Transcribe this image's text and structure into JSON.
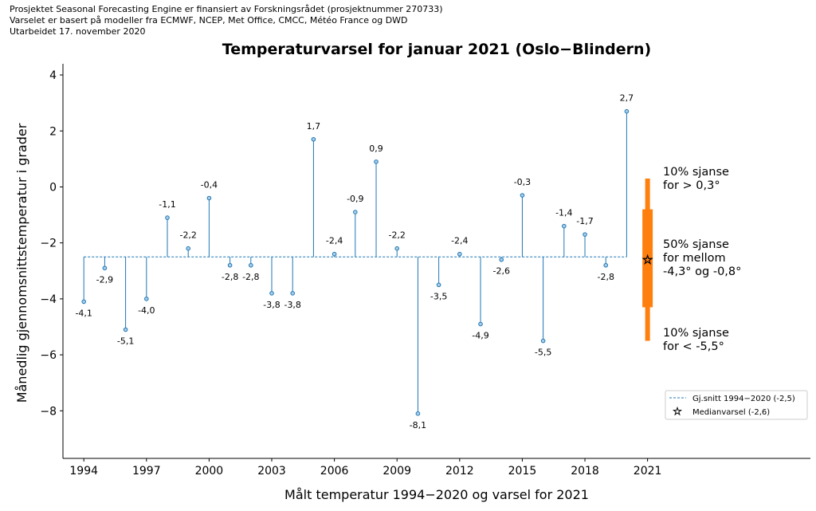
{
  "header": {
    "line1": "Prosjektet Seasonal Forecasting Engine er finansiert av Forskningsrådet (prosjektnummer 270733)",
    "line2": "Varselet er basert på modeller fra ECMWF, NCEP, Met Office, CMCC, Météo France og DWD",
    "line3": "Utarbeidet 17. november 2020"
  },
  "chart_data": {
    "type": "stem",
    "title": "Temperaturvarsel for januar 2021 (Oslo−Blindern)",
    "xlabel": "Målt temperatur 1994−2020 og varsel for 2021",
    "ylabel": "Månedlig gjennomsnittstemperatur i grader",
    "xlim": [
      1993,
      2028.8
    ],
    "ylim": [
      -9.7,
      4.4
    ],
    "xticks": [
      1994,
      1997,
      2000,
      2003,
      2006,
      2009,
      2012,
      2015,
      2018,
      2021
    ],
    "yticks": [
      4,
      2,
      0,
      -2,
      -4,
      -6,
      -8
    ],
    "baseline": -2.5,
    "x": [
      1994,
      1995,
      1996,
      1997,
      1998,
      1999,
      2000,
      2001,
      2002,
      2003,
      2004,
      2005,
      2006,
      2007,
      2008,
      2009,
      2010,
      2011,
      2012,
      2013,
      2014,
      2015,
      2016,
      2017,
      2018,
      2019,
      2020
    ],
    "values": [
      -4.1,
      -2.9,
      -5.1,
      -4.0,
      -1.1,
      -2.2,
      -0.4,
      -2.8,
      -2.8,
      -3.8,
      -3.8,
      1.7,
      -2.4,
      -0.9,
      0.9,
      -2.2,
      -8.1,
      -3.5,
      -2.4,
      -4.9,
      -2.6,
      -0.3,
      -5.5,
      -1.4,
      -1.7,
      -2.8,
      2.7
    ],
    "labels": [
      "-4,1",
      "-2,9",
      "-5,1",
      "-4,0",
      "-1,1",
      "-2,2",
      "-0,4",
      "-2,8",
      "-2,8",
      "-3,8",
      "-3,8",
      "1,7",
      "-2,4",
      "-0,9",
      "0,9",
      "-2,2",
      "-8,1",
      "-3,5",
      "-2,4",
      "-4,9",
      "-2,6",
      "-0,3",
      "-5,5",
      "-1,4",
      "-1,7",
      "-2,8",
      "2,7"
    ],
    "forecast": {
      "year": 2021,
      "p10": -5.5,
      "p25": -4.3,
      "median": -2.6,
      "p75": -0.8,
      "p90": 0.3,
      "upper_text": [
        "10% sjanse",
        "for > 0,3°"
      ],
      "middle_text": [
        "50% sjanse",
        "for mellom",
        "-4,3° og -0,8°"
      ],
      "lower_text": [
        "10% sjanse",
        "for < -5,5°"
      ]
    },
    "legend": {
      "placement": "lower-right",
      "entries": [
        "Gj.snitt 1994−2020 (-2,5)",
        "Medianvarsel (-2,6)"
      ]
    },
    "colors": {
      "stem": "#1f77b4",
      "forecast": "#ff7f0e"
    }
  }
}
